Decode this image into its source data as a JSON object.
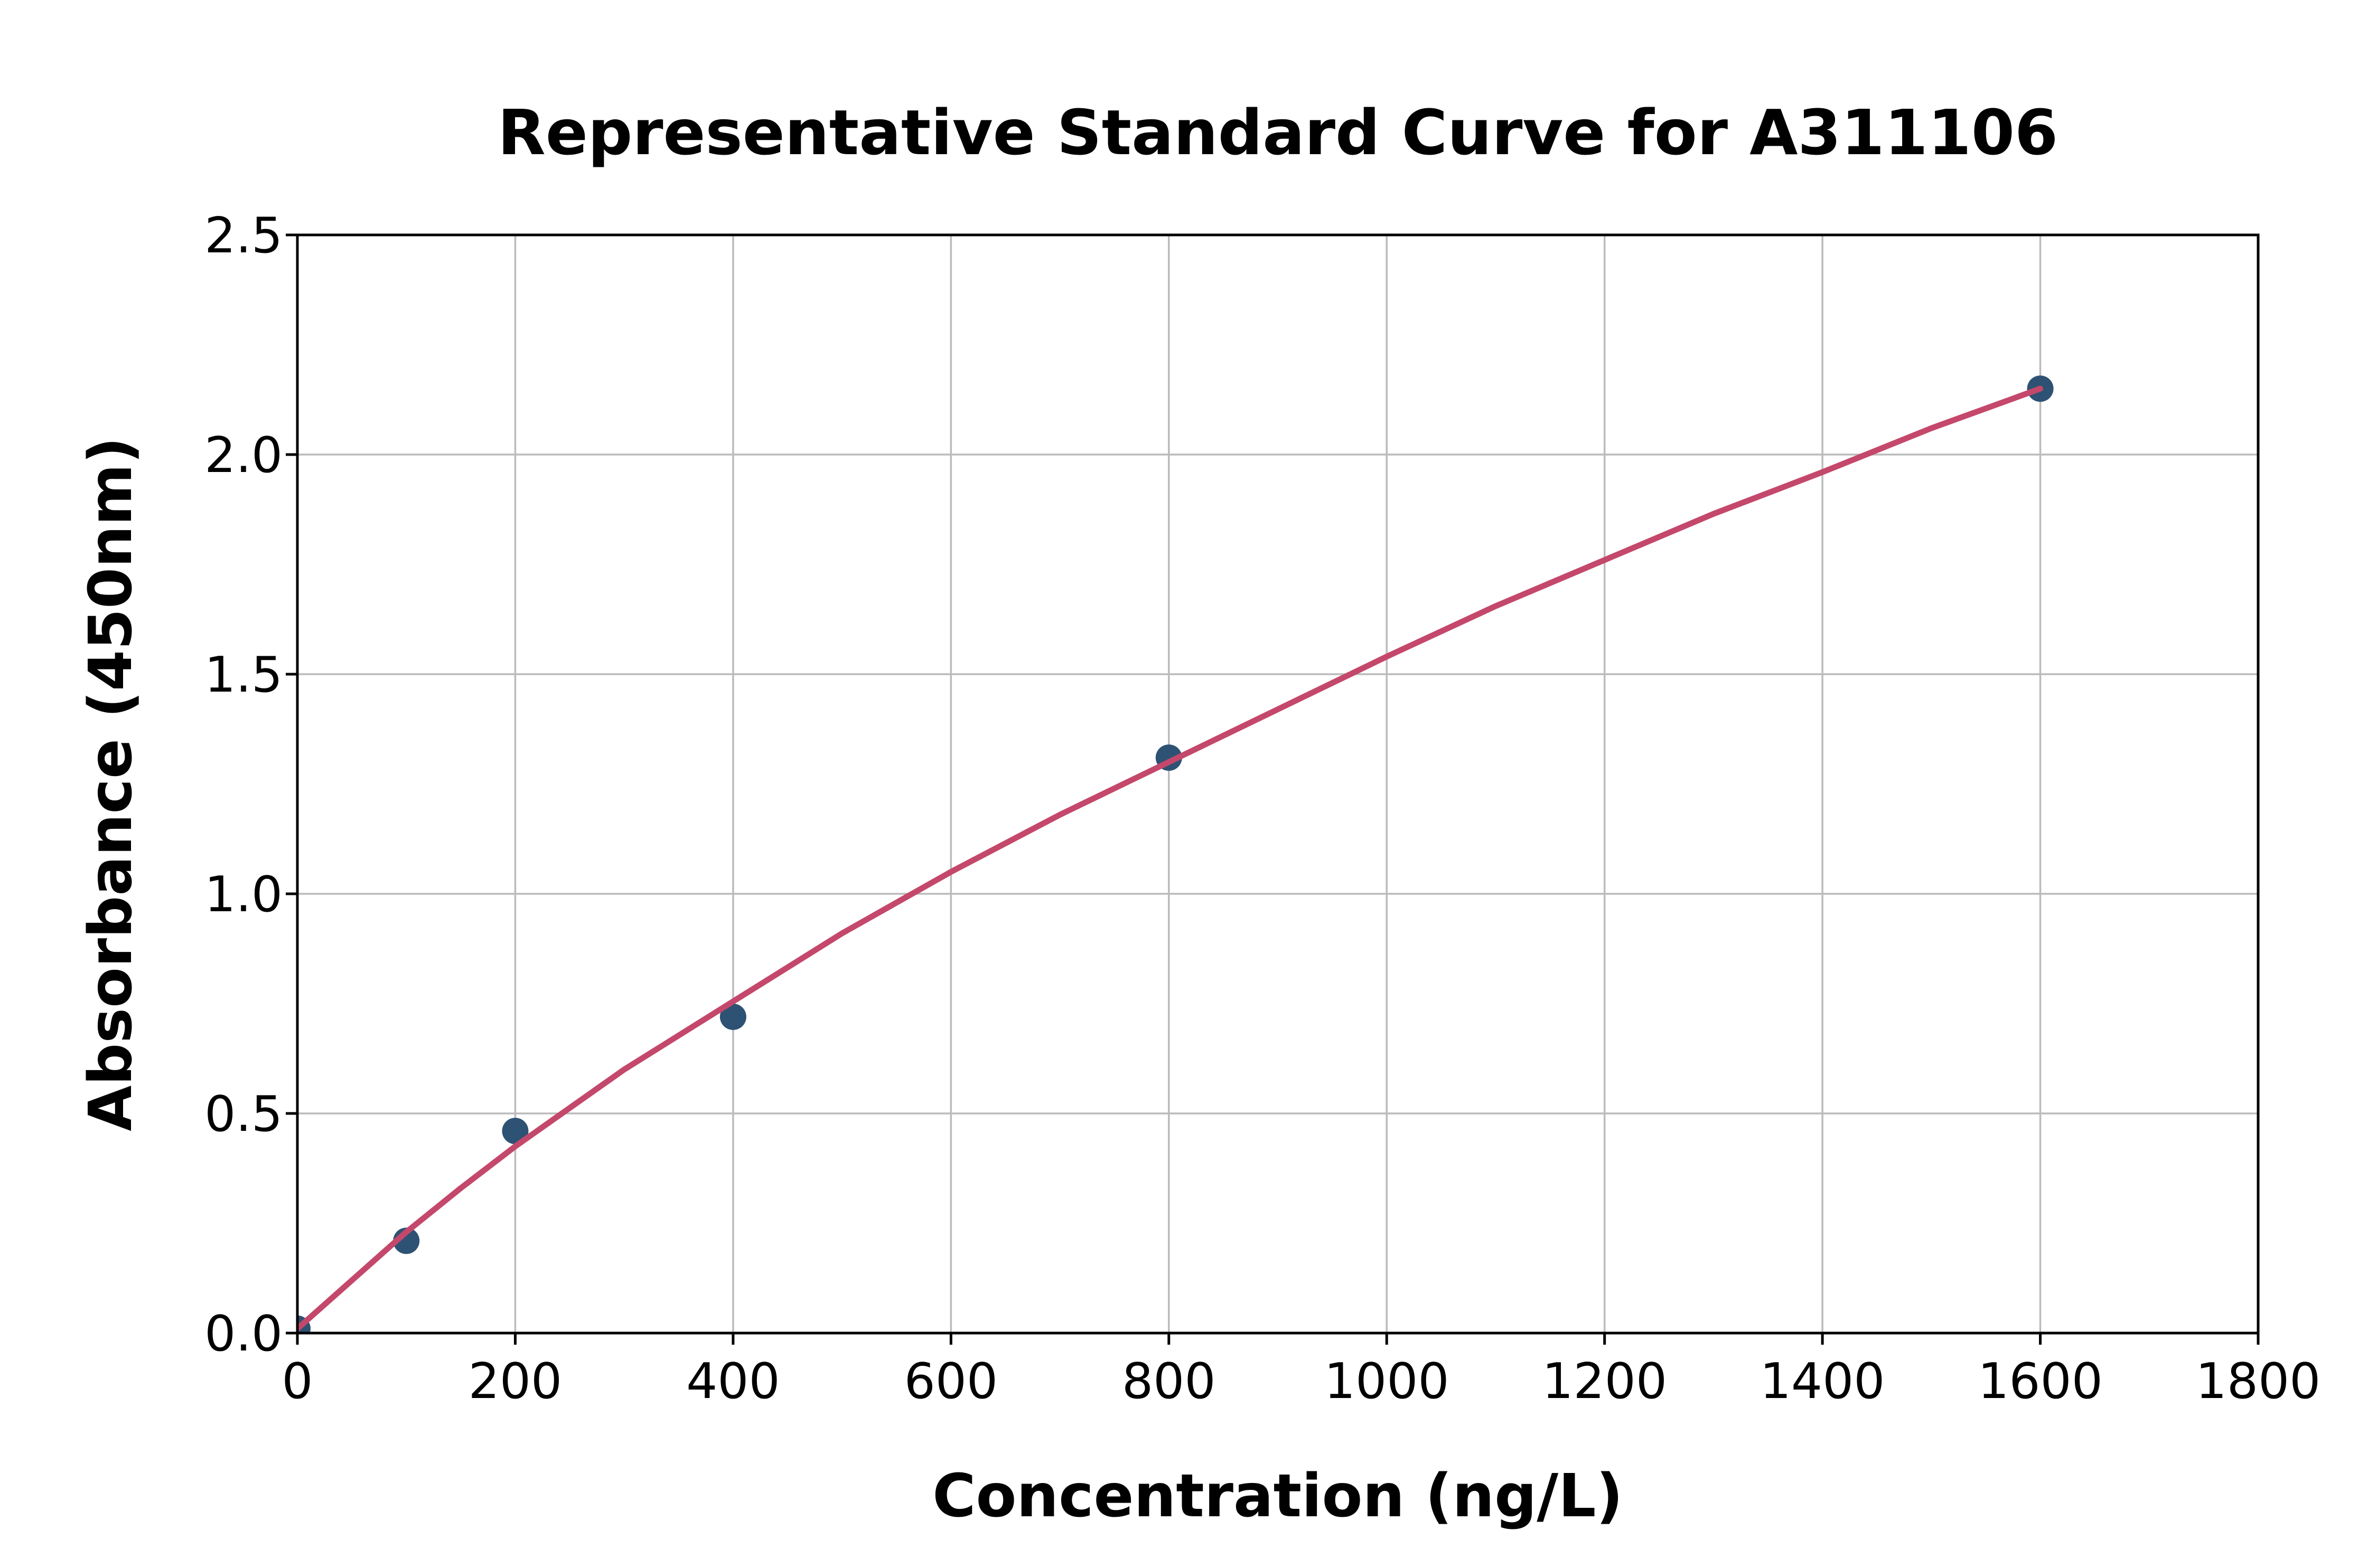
{
  "chart_data": {
    "type": "scatter",
    "title": "Representative Standard Curve for A311106",
    "xlabel": "Concentration (ng/L)",
    "ylabel": "Absorbance (450nm)",
    "xlim": [
      0,
      1800
    ],
    "ylim": [
      0.0,
      2.5
    ],
    "xticks": [
      0,
      200,
      400,
      600,
      800,
      1000,
      1200,
      1400,
      1600,
      1800
    ],
    "ytick_labels": [
      "0.0",
      "0.5",
      "1.0",
      "1.5",
      "2.0",
      "2.5"
    ],
    "grid": true,
    "legend": false,
    "points": [
      [
        0,
        0.01
      ],
      [
        100,
        0.21
      ],
      [
        200,
        0.46
      ],
      [
        400,
        0.72
      ],
      [
        800,
        1.31
      ],
      [
        1600,
        2.15
      ]
    ],
    "fit_curve": [
      [
        0,
        0.01
      ],
      [
        50,
        0.12
      ],
      [
        100,
        0.23
      ],
      [
        150,
        0.33
      ],
      [
        200,
        0.425
      ],
      [
        300,
        0.6
      ],
      [
        400,
        0.755
      ],
      [
        500,
        0.91
      ],
      [
        600,
        1.05
      ],
      [
        700,
        1.18
      ],
      [
        800,
        1.3
      ],
      [
        900,
        1.42
      ],
      [
        1000,
        1.54
      ],
      [
        1100,
        1.655
      ],
      [
        1200,
        1.76
      ],
      [
        1300,
        1.865
      ],
      [
        1400,
        1.96
      ],
      [
        1500,
        2.06
      ],
      [
        1600,
        2.15
      ]
    ],
    "colors": {
      "point_color": "#2E5273",
      "line_color": "#C4486B",
      "grid_color": "#BBBBBB",
      "spine_color": "#000000",
      "text_color": "#000000",
      "background": "#FFFFFF"
    }
  }
}
